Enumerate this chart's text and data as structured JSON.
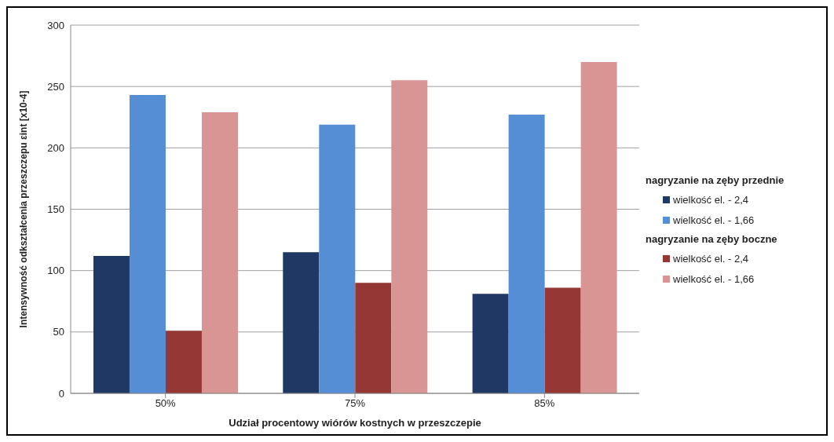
{
  "chart_data": {
    "type": "bar",
    "xlabel": "Udział procentowy wiórów kostnych w przeszczepie",
    "ylabel": "Intensywność odkształcenia przeszczepu εint [x10-4]",
    "categories": [
      "50%",
      "75%",
      "85%"
    ],
    "series": [
      {
        "name": "wielkość el. - 2,4",
        "color": "#1f3864",
        "values": [
          112,
          115,
          81
        ]
      },
      {
        "name": "wielkość el. - 1,66",
        "color": "#558ed5",
        "values": [
          243,
          219,
          227
        ]
      },
      {
        "name": "wielkość el. - 2,4",
        "color": "#953735",
        "values": [
          51,
          90,
          86
        ]
      },
      {
        "name": "wielkość el. - 1,66",
        "color": "#d99594",
        "values": [
          229,
          255,
          270
        ]
      }
    ],
    "annotations": [
      "nagryzanie na zęby przednie",
      "nagryzanie na zęby boczne"
    ],
    "ylim": [
      0,
      300
    ],
    "yticks": [
      0,
      50,
      100,
      150,
      200,
      250,
      300
    ],
    "grid": "y",
    "legend": "right"
  }
}
